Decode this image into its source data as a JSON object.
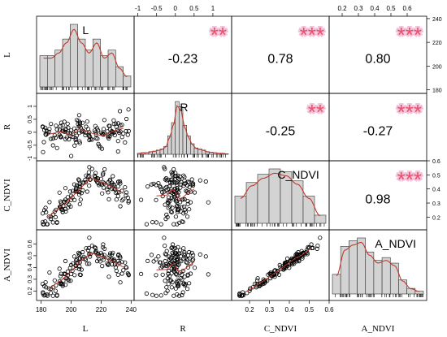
{
  "chart_data": {
    "type": "scatter",
    "subtype": "correlation-matrix",
    "variables": [
      {
        "name": "L",
        "range": [
          177,
          242
        ],
        "ticks": [
          180,
          200,
          220,
          240
        ]
      },
      {
        "name": "R",
        "range": [
          -1.1,
          1.5
        ],
        "ticks": [
          -1.0,
          -0.5,
          0.0,
          0.5,
          1.0
        ]
      },
      {
        "name": "C_NDVI",
        "range": [
          0.11,
          0.6
        ],
        "ticks": [
          0.2,
          0.3,
          0.4,
          0.5,
          0.6
        ]
      },
      {
        "name": "A_NDVI",
        "range": [
          0.12,
          0.72
        ],
        "ticks": [
          0.2,
          0.3,
          0.4,
          0.5,
          0.6
        ]
      }
    ],
    "diagonal_labels": [
      "L",
      "R",
      "C_NDVI",
      "A_NDVI"
    ],
    "correlations": [
      {
        "row": 0,
        "col": 1,
        "value": "-0.23",
        "stars": "**"
      },
      {
        "row": 0,
        "col": 2,
        "value": "0.78",
        "stars": "***"
      },
      {
        "row": 0,
        "col": 3,
        "value": "0.80",
        "stars": "***"
      },
      {
        "row": 1,
        "col": 2,
        "value": "-0.25",
        "stars": "**"
      },
      {
        "row": 1,
        "col": 3,
        "value": "-0.27",
        "stars": "***"
      },
      {
        "row": 2,
        "col": 3,
        "value": "0.98",
        "stars": "***"
      }
    ],
    "histograms": [
      {
        "var": "L",
        "bin_edges": [
          180,
          185,
          190,
          195,
          200,
          205,
          210,
          215,
          220,
          225,
          230,
          235,
          240
        ],
        "freq": [
          0.017,
          0.017,
          0.02,
          0.026,
          0.034,
          0.026,
          0.02,
          0.026,
          0.017,
          0.02,
          0.011,
          0.006
        ]
      },
      {
        "var": "R",
        "bin_edges": [
          -1.0,
          -0.9,
          -0.8,
          -0.7,
          -0.6,
          -0.5,
          -0.4,
          -0.3,
          -0.2,
          -0.1,
          0.0,
          0.1,
          0.2,
          0.3,
          0.4,
          0.5,
          0.6,
          0.7,
          0.8,
          0.9,
          1.0,
          1.1,
          1.2,
          1.3,
          1.4
        ],
        "freq": [
          0.02,
          0.03,
          0.03,
          0.05,
          0.06,
          0.08,
          0.1,
          0.15,
          0.35,
          0.6,
          1.0,
          0.9,
          0.55,
          0.35,
          0.2,
          0.12,
          0.1,
          0.08,
          0.05,
          0.04,
          0.03,
          0.02,
          0.02,
          0.01
        ]
      },
      {
        "var": "C_NDVI",
        "bin_edges": [
          0.15,
          0.2,
          0.25,
          0.3,
          0.35,
          0.4,
          0.45,
          0.5,
          0.55
        ],
        "freq": [
          0.5,
          0.75,
          0.9,
          1.0,
          0.95,
          0.78,
          0.5,
          0.15
        ]
      },
      {
        "var": "A_NDVI",
        "bin_edges": [
          0.15,
          0.2,
          0.25,
          0.3,
          0.35,
          0.4,
          0.45,
          0.5,
          0.55,
          0.6,
          0.65,
          0.7
        ],
        "freq": [
          0.35,
          0.85,
          0.95,
          1.0,
          0.75,
          0.6,
          0.65,
          0.55,
          0.25,
          0.1,
          0.05
        ]
      }
    ],
    "density_color": "#c0392b",
    "star_color": "#e8506a",
    "star_halo_color": "#f4c4dc",
    "bar_fill": "#d3d3d3",
    "point_stroke": "#000000"
  }
}
